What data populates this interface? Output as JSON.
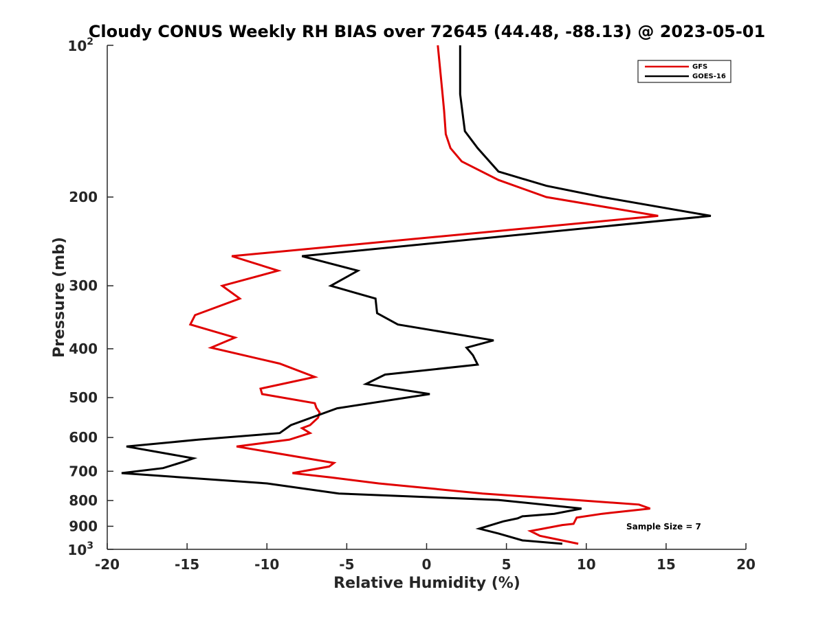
{
  "chart_data": {
    "type": "line",
    "title": "Cloudy CONUS Weekly RH BIAS over 72645 (44.48, -88.13) @ 2023-05-01",
    "xlabel": "Relative Humidity (%)",
    "ylabel": "Pressure (mb)",
    "xlim": [
      -20,
      20
    ],
    "ylim": [
      100,
      1000
    ],
    "y_scale": "log",
    "y_reversed": true,
    "grid": false,
    "legend_position": "top-right",
    "x_ticks": [
      -20,
      -15,
      -10,
      -5,
      0,
      5,
      10,
      15,
      20
    ],
    "x_tick_labels": [
      "-20",
      "-15",
      "-10",
      "-5",
      "0",
      "5",
      "10",
      "15",
      "20"
    ],
    "y_ticks": [
      200,
      300,
      400,
      500,
      600,
      700,
      800,
      900
    ],
    "y_tick_labels": [
      "200",
      "300",
      "400",
      "500",
      "600",
      "700",
      "800",
      "900"
    ],
    "y_end_labels": [
      {
        "value": 100,
        "base": "10",
        "exp": "2"
      },
      {
        "value": 1000,
        "base": "10",
        "exp": "3"
      }
    ],
    "annotation": "Sample Size = 7",
    "series": [
      {
        "name": "GFS",
        "color": "#e00000",
        "points": [
          [
            0.7,
            100
          ],
          [
            1.0,
            125
          ],
          [
            1.1,
            135
          ],
          [
            1.2,
            150
          ],
          [
            1.5,
            160
          ],
          [
            2.2,
            170
          ],
          [
            4.5,
            185
          ],
          [
            7.5,
            200
          ],
          [
            14.5,
            218
          ],
          [
            -12.2,
            262
          ],
          [
            -9.3,
            280
          ],
          [
            -12.8,
            300
          ],
          [
            -11.7,
            318
          ],
          [
            -14.5,
            343
          ],
          [
            -14.8,
            358
          ],
          [
            -12.0,
            380
          ],
          [
            -13.5,
            398
          ],
          [
            -9.2,
            428
          ],
          [
            -7.0,
            455
          ],
          [
            -10.4,
            480
          ],
          [
            -10.3,
            492
          ],
          [
            -7.0,
            513
          ],
          [
            -6.9,
            524
          ],
          [
            -6.7,
            535
          ],
          [
            -6.8,
            548
          ],
          [
            -7.3,
            567
          ],
          [
            -7.8,
            575
          ],
          [
            -7.3,
            588
          ],
          [
            -8.6,
            606
          ],
          [
            -11.9,
            625
          ],
          [
            -8.1,
            655
          ],
          [
            -5.8,
            674
          ],
          [
            -6.1,
            685
          ],
          [
            -8.4,
            706
          ],
          [
            -6.0,
            720
          ],
          [
            -3.0,
            740
          ],
          [
            3.5,
            775
          ],
          [
            9.3,
            798
          ],
          [
            13.3,
            815
          ],
          [
            14.0,
            830
          ],
          [
            11.0,
            850
          ],
          [
            9.4,
            865
          ],
          [
            9.2,
            890
          ],
          [
            8.5,
            895
          ],
          [
            6.5,
            920
          ],
          [
            7.1,
            940
          ],
          [
            9.5,
            975
          ]
        ]
      },
      {
        "name": "GOES-16",
        "color": "#000000",
        "points": [
          [
            2.1,
            100
          ],
          [
            2.1,
            125
          ],
          [
            2.3,
            140
          ],
          [
            2.4,
            148
          ],
          [
            3.2,
            160
          ],
          [
            4.5,
            178
          ],
          [
            7.5,
            190
          ],
          [
            11.0,
            200
          ],
          [
            17.8,
            218
          ],
          [
            -7.8,
            262
          ],
          [
            -4.3,
            280
          ],
          [
            -6.0,
            300
          ],
          [
            -3.2,
            318
          ],
          [
            -3.1,
            340
          ],
          [
            -1.8,
            358
          ],
          [
            4.2,
            385
          ],
          [
            2.5,
            398
          ],
          [
            2.9,
            412
          ],
          [
            3.2,
            430
          ],
          [
            -2.6,
            450
          ],
          [
            -3.8,
            470
          ],
          [
            0.2,
            492
          ],
          [
            -5.6,
            525
          ],
          [
            -8.5,
            567
          ],
          [
            -9.2,
            588
          ],
          [
            -14.3,
            606
          ],
          [
            -18.8,
            625
          ],
          [
            -14.6,
            660
          ],
          [
            -15.2,
            670
          ],
          [
            -16.5,
            690
          ],
          [
            -19.1,
            706
          ],
          [
            -10.0,
            740
          ],
          [
            -5.5,
            775
          ],
          [
            4.5,
            798
          ],
          [
            9.7,
            830
          ],
          [
            8.0,
            850
          ],
          [
            6.0,
            860
          ],
          [
            5.7,
            868
          ],
          [
            4.8,
            880
          ],
          [
            3.3,
            910
          ],
          [
            4.5,
            930
          ],
          [
            6.0,
            960
          ],
          [
            8.5,
            975
          ]
        ]
      }
    ]
  }
}
